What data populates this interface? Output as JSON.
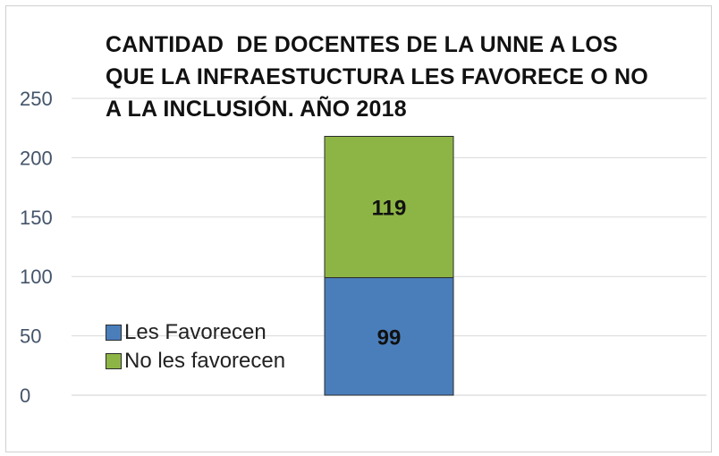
{
  "chart_data": {
    "type": "bar",
    "stacked": true,
    "title_lines": [
      "CANTIDAD  DE DOCENTES DE LA UNNE A LOS",
      "QUE LA INFRAESTUCTURA LES FAVORECE O NO",
      "A LA INCLUSIÓN. AÑO 2018"
    ],
    "categories": [
      ""
    ],
    "series": [
      {
        "name": "Les Favorecen",
        "values": [
          99
        ],
        "color": "#4a7ebb"
      },
      {
        "name": "No les favorecen",
        "values": [
          119
        ],
        "color": "#8db545"
      }
    ],
    "ylim": [
      0,
      250
    ],
    "yticks": [
      "0",
      "50",
      "100",
      "150",
      "200",
      "250"
    ],
    "grid": true,
    "legend_position": "left"
  }
}
